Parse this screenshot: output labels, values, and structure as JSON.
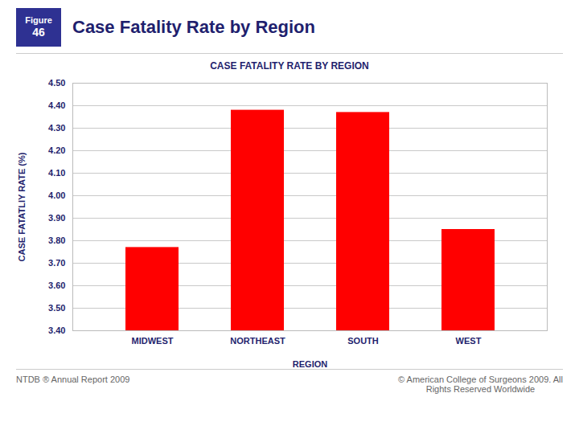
{
  "chart_data": {
    "type": "bar",
    "title": "Case Fatality Rate by Region",
    "subtitle": "CASE FATALITY RATE BY REGION",
    "xlabel": "REGION",
    "ylabel": "CASE FATATLIY RATE (%)",
    "categories": [
      "MIDWEST",
      "NORTHEAST",
      "SOUTH",
      "WEST"
    ],
    "values": [
      3.77,
      4.38,
      4.37,
      3.85
    ],
    "color": "#FF0000",
    "ylim": [
      3.4,
      4.5
    ],
    "yticks": [
      {
        "value": 3.4,
        "label": "3.40"
      },
      {
        "value": 3.5,
        "label": "3.50"
      },
      {
        "value": 3.6,
        "label": "3.60"
      },
      {
        "value": 3.7,
        "label": "3.70"
      },
      {
        "value": 3.8,
        "label": "3.80"
      },
      {
        "value": 3.9,
        "label": "3.90"
      },
      {
        "value": 4.0,
        "label": "4.00"
      },
      {
        "value": 4.1,
        "label": "4.10"
      },
      {
        "value": 4.2,
        "label": "4.20"
      },
      {
        "value": 4.3,
        "label": "4.30"
      },
      {
        "value": 4.4,
        "label": "4.40"
      },
      {
        "value": 4.5,
        "label": "4.50"
      }
    ],
    "grid": true,
    "annotations": [
      "Figure",
      "46",
      "NTDB ® Annual Report 2009",
      "© American College of Surgeons 2009.  All\nRights Reserved Worldwide"
    ]
  }
}
